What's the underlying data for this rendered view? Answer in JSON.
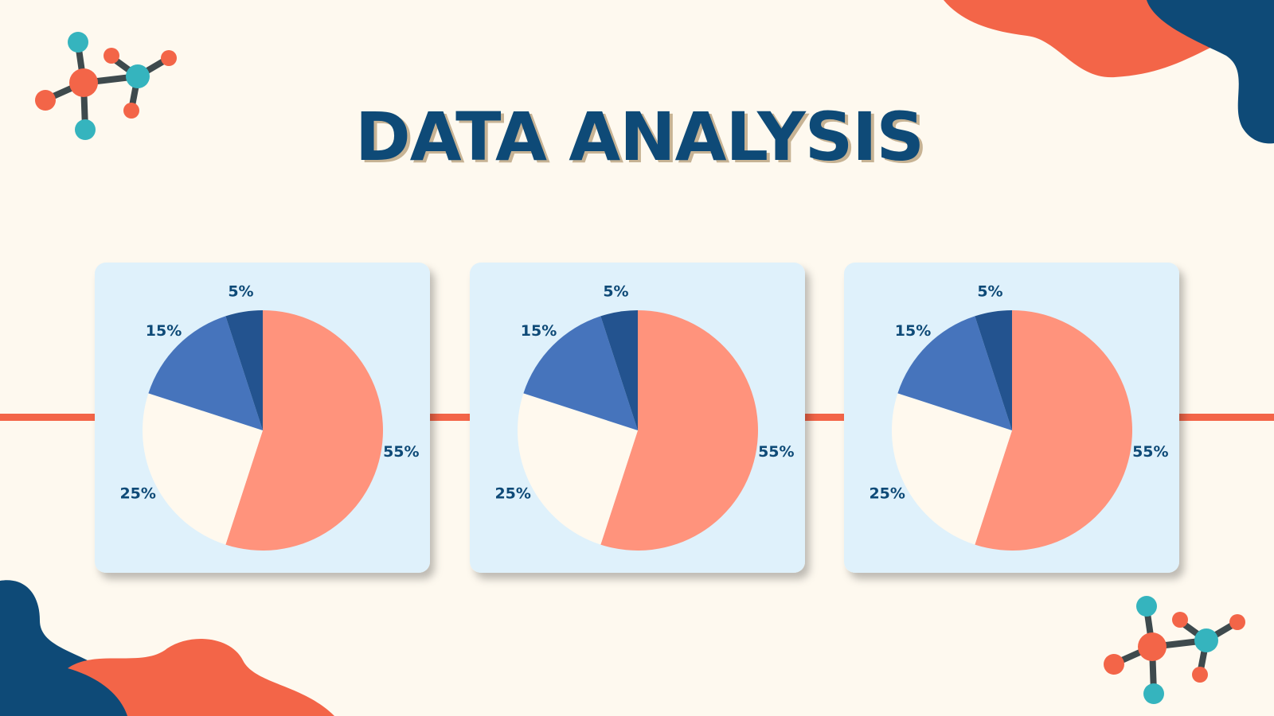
{
  "title": "DATA ANALYSIS",
  "chart_data": [
    {
      "type": "pie",
      "values": [
        55,
        25,
        15,
        5
      ],
      "value_labels": [
        "55%",
        "25%",
        "15%",
        "5%"
      ],
      "colors": [
        "#FF937C",
        "#FFF9EE",
        "#4674BC",
        "#23538F"
      ]
    },
    {
      "type": "pie",
      "values": [
        55,
        25,
        15,
        5
      ],
      "value_labels": [
        "55%",
        "25%",
        "15%",
        "5%"
      ],
      "colors": [
        "#FF937C",
        "#FFF9EE",
        "#4674BC",
        "#23538F"
      ]
    },
    {
      "type": "pie",
      "values": [
        55,
        25,
        15,
        5
      ],
      "value_labels": [
        "55%",
        "25%",
        "15%",
        "5%"
      ],
      "colors": [
        "#FF937C",
        "#FFF9EE",
        "#4674BC",
        "#23538F"
      ]
    }
  ]
}
